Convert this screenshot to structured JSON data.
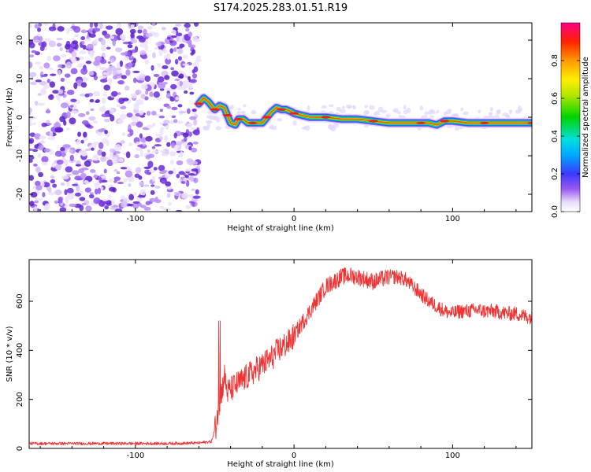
{
  "title": "S174.2025.283.01.51.R19",
  "colors": {
    "snr_line": "#ee3333",
    "spectrum_low": "#7a3bd6",
    "background": "#ffffff",
    "frame": "#000000"
  },
  "chart_data": [
    {
      "type": "heatmap",
      "name": "spectrogram",
      "xlabel": "Height of straight line (km)",
      "ylabel": "Frequency (Hz)",
      "xlim": [
        -167,
        150
      ],
      "ylim": [
        -24.5,
        24.5
      ],
      "xticks": [
        -100,
        0,
        100
      ],
      "yticks": [
        -20,
        -10,
        0,
        10,
        20
      ],
      "noise_region_x": [
        -167,
        -60
      ],
      "ridge": {
        "x": [
          -60,
          -57,
          -54,
          -50,
          -47,
          -44,
          -42,
          -40,
          -37,
          -35,
          -32,
          -29,
          -26,
          -23,
          -20,
          -17,
          -14,
          -11,
          -8,
          -5,
          -2,
          0,
          5,
          10,
          20,
          30,
          40,
          50,
          60,
          70,
          80,
          85,
          90,
          95,
          100,
          110,
          120,
          130,
          140,
          150
        ],
        "y": [
          3.5,
          5,
          4,
          2,
          3,
          2.5,
          0.5,
          -1.5,
          -2,
          -0.5,
          -0.5,
          -1.5,
          -1.5,
          -1.5,
          -1.5,
          0,
          1.5,
          2.5,
          2,
          2,
          1.5,
          1,
          0.5,
          0,
          0,
          -0.5,
          -0.5,
          -1,
          -1.5,
          -1.5,
          -1.5,
          -1.5,
          -2,
          -1,
          -1,
          -1.5,
          -1.5,
          -1.5,
          -1.5,
          -1.5
        ]
      },
      "colorbar": {
        "label": "Normalized spectral amplitude",
        "ticks": [
          "0.0",
          "0.2",
          "0.4",
          "0.6",
          "0.8"
        ],
        "range": [
          0,
          1
        ]
      }
    },
    {
      "type": "line",
      "name": "snr",
      "xlabel": "Height of straight line (km)",
      "ylabel": "SNR (10 * v/v)",
      "xlim": [
        -167,
        150
      ],
      "ylim": [
        0,
        770
      ],
      "xticks": [
        -100,
        0,
        100
      ],
      "yticks": [
        0,
        200,
        400,
        600
      ],
      "series": [
        {
          "name": "SNR",
          "x": [
            -167,
            -140,
            -120,
            -100,
            -80,
            -60,
            -52,
            -49,
            -47,
            -45,
            -44,
            -42,
            -38,
            -34,
            -30,
            -26,
            -22,
            -18,
            -14,
            -10,
            -6,
            -2,
            0,
            4,
            8,
            12,
            16,
            20,
            25,
            30,
            35,
            40,
            45,
            50,
            55,
            60,
            65,
            70,
            75,
            80,
            85,
            90,
            95,
            100,
            105,
            110,
            115,
            120,
            125,
            130,
            135,
            140,
            145,
            150
          ],
          "y": [
            20,
            20,
            20,
            20,
            20,
            22,
            28,
            100,
            200,
            250,
            300,
            230,
            250,
            270,
            290,
            310,
            330,
            350,
            370,
            400,
            420,
            440,
            460,
            500,
            540,
            580,
            620,
            660,
            680,
            700,
            705,
            700,
            690,
            680,
            690,
            700,
            700,
            690,
            660,
            630,
            600,
            580,
            560,
            550,
            560,
            560,
            565,
            560,
            560,
            555,
            550,
            550,
            540,
            535
          ]
        }
      ]
    }
  ]
}
